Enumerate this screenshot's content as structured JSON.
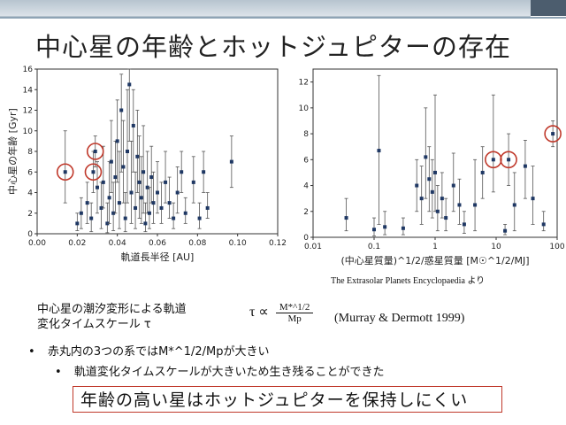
{
  "slide": {
    "title": "中心星の年齢とホットジュピターの存在",
    "source": "The Extrasolar Planets Encyclopaedia より",
    "text_line1": "中心星の潮汐変形による軌道",
    "text_line2": "変化タイムスケール τ",
    "formula_lhs": "τ ∝",
    "formula_num": "M*^1/2",
    "formula_den": "Mp",
    "reference": "(Murray & Dermott 1999)",
    "bullet1": "赤丸内の3つの系ではM*^1/2/Mpが大きい",
    "bullet2": "軌道変化タイムスケールが大きいため生き残ることができた",
    "conclusion": "年齢の高い星はホットジュピターを保持しにくい",
    "bullet_mark": "•"
  },
  "chart_data": [
    {
      "type": "scatter",
      "xlabel": "軌道長半径 [AU]",
      "ylabel": "中心星の年齢 [Gyr]",
      "xlim": [
        0,
        0.12
      ],
      "ylim": [
        0,
        16
      ],
      "xticks": [
        "0.00",
        "0.02",
        "0.04",
        "0.06",
        "0.08",
        "0.10",
        "0.12"
      ],
      "yticks": [
        "0",
        "2",
        "4",
        "6",
        "8",
        "10",
        "12",
        "14",
        "16"
      ],
      "points": [
        {
          "x": 0.014,
          "y": 6.0,
          "lo": 3.0,
          "hi": 10.0
        },
        {
          "x": 0.028,
          "y": 6.0,
          "lo": 4.0,
          "hi": 8.0
        },
        {
          "x": 0.029,
          "y": 8.0,
          "lo": 6.5,
          "hi": 9.5
        },
        {
          "x": 0.02,
          "y": 1.0,
          "lo": 0.3,
          "hi": 2.0
        },
        {
          "x": 0.022,
          "y": 2.0,
          "lo": 0.5,
          "hi": 3.5
        },
        {
          "x": 0.025,
          "y": 3.0,
          "lo": 1.0,
          "hi": 5.0
        },
        {
          "x": 0.027,
          "y": 1.5,
          "lo": 0.2,
          "hi": 3.0
        },
        {
          "x": 0.03,
          "y": 4.5,
          "lo": 2.0,
          "hi": 7.0
        },
        {
          "x": 0.032,
          "y": 2.5,
          "lo": 0.5,
          "hi": 5.0
        },
        {
          "x": 0.033,
          "y": 5.0,
          "lo": 2.5,
          "hi": 8.5
        },
        {
          "x": 0.035,
          "y": 1.0,
          "lo": 0.1,
          "hi": 3.0
        },
        {
          "x": 0.036,
          "y": 3.5,
          "lo": 1.0,
          "hi": 7.0
        },
        {
          "x": 0.037,
          "y": 7.0,
          "lo": 4.0,
          "hi": 11.0
        },
        {
          "x": 0.038,
          "y": 2.0,
          "lo": 0.3,
          "hi": 5.0
        },
        {
          "x": 0.039,
          "y": 5.5,
          "lo": 2.0,
          "hi": 9.0
        },
        {
          "x": 0.04,
          "y": 9.0,
          "lo": 5.0,
          "hi": 13.0
        },
        {
          "x": 0.041,
          "y": 3.0,
          "lo": 0.5,
          "hi": 8.0
        },
        {
          "x": 0.042,
          "y": 12.0,
          "lo": 6.0,
          "hi": 15.5
        },
        {
          "x": 0.043,
          "y": 6.5,
          "lo": 3.0,
          "hi": 11.0
        },
        {
          "x": 0.044,
          "y": 1.5,
          "lo": 0.2,
          "hi": 4.0
        },
        {
          "x": 0.045,
          "y": 8.0,
          "lo": 3.0,
          "hi": 14.0
        },
        {
          "x": 0.046,
          "y": 14.5,
          "lo": 9.0,
          "hi": 16.0
        },
        {
          "x": 0.047,
          "y": 4.0,
          "lo": 1.0,
          "hi": 9.0
        },
        {
          "x": 0.048,
          "y": 10.5,
          "lo": 6.0,
          "hi": 14.0
        },
        {
          "x": 0.049,
          "y": 2.5,
          "lo": 0.5,
          "hi": 6.0
        },
        {
          "x": 0.05,
          "y": 7.5,
          "lo": 4.0,
          "hi": 12.0
        },
        {
          "x": 0.051,
          "y": 5.0,
          "lo": 1.5,
          "hi": 9.5
        },
        {
          "x": 0.052,
          "y": 3.5,
          "lo": 1.0,
          "hi": 7.5
        },
        {
          "x": 0.053,
          "y": 6.0,
          "lo": 2.0,
          "hi": 10.5
        },
        {
          "x": 0.054,
          "y": 1.0,
          "lo": 0.2,
          "hi": 3.0
        },
        {
          "x": 0.055,
          "y": 4.5,
          "lo": 2.0,
          "hi": 8.0
        },
        {
          "x": 0.056,
          "y": 2.0,
          "lo": 0.5,
          "hi": 4.5
        },
        {
          "x": 0.057,
          "y": 5.5,
          "lo": 3.0,
          "hi": 8.5
        },
        {
          "x": 0.058,
          "y": 3.0,
          "lo": 1.0,
          "hi": 6.0
        },
        {
          "x": 0.06,
          "y": 4.0,
          "lo": 2.0,
          "hi": 7.0
        },
        {
          "x": 0.062,
          "y": 2.5,
          "lo": 1.0,
          "hi": 5.0
        },
        {
          "x": 0.064,
          "y": 5.0,
          "lo": 3.0,
          "hi": 8.0
        },
        {
          "x": 0.066,
          "y": 3.0,
          "lo": 1.5,
          "hi": 5.5
        },
        {
          "x": 0.068,
          "y": 1.5,
          "lo": 0.5,
          "hi": 3.0
        },
        {
          "x": 0.07,
          "y": 4.0,
          "lo": 2.0,
          "hi": 6.5
        },
        {
          "x": 0.072,
          "y": 6.0,
          "lo": 4.0,
          "hi": 8.0
        },
        {
          "x": 0.074,
          "y": 2.0,
          "lo": 1.0,
          "hi": 3.5
        },
        {
          "x": 0.078,
          "y": 5.0,
          "lo": 3.0,
          "hi": 7.5
        },
        {
          "x": 0.081,
          "y": 1.5,
          "lo": 0.5,
          "hi": 3.0
        },
        {
          "x": 0.083,
          "y": 6.0,
          "lo": 4.0,
          "hi": 8.0
        },
        {
          "x": 0.085,
          "y": 2.5,
          "lo": 1.5,
          "hi": 4.0
        },
        {
          "x": 0.097,
          "y": 7.0,
          "lo": 4.5,
          "hi": 9.5
        }
      ],
      "highlights": [
        {
          "x": 0.014,
          "y": 6.0
        },
        {
          "x": 0.028,
          "y": 6.0
        },
        {
          "x": 0.029,
          "y": 8.0
        }
      ]
    },
    {
      "type": "scatter",
      "log_x": true,
      "xlabel": "(中心星質量)^1/2/惑星質量 [M☉^1/2/MJ]",
      "xlim": [
        0.01,
        100
      ],
      "ylim": [
        0,
        13
      ],
      "xticks": [
        "0.01",
        "0.1",
        "1",
        "10",
        "100"
      ],
      "yticks": [
        "0",
        "2",
        "4",
        "6",
        "8",
        "10",
        "12"
      ],
      "points": [
        {
          "x": 0.035,
          "y": 1.5,
          "lo": 0.5,
          "hi": 3.0
        },
        {
          "x": 0.1,
          "y": 0.6,
          "lo": 0.1,
          "hi": 1.5
        },
        {
          "x": 0.12,
          "y": 6.7,
          "lo": 1.0,
          "hi": 12.5
        },
        {
          "x": 0.15,
          "y": 0.8,
          "lo": 0.2,
          "hi": 2.0
        },
        {
          "x": 0.3,
          "y": 0.7,
          "lo": 0.2,
          "hi": 1.5
        },
        {
          "x": 0.5,
          "y": 4.0,
          "lo": 2.0,
          "hi": 6.0
        },
        {
          "x": 0.6,
          "y": 3.0,
          "lo": 1.0,
          "hi": 5.5
        },
        {
          "x": 0.7,
          "y": 6.2,
          "lo": 3.0,
          "hi": 10.0
        },
        {
          "x": 0.8,
          "y": 4.5,
          "lo": 2.0,
          "hi": 7.0
        },
        {
          "x": 0.9,
          "y": 3.5,
          "lo": 1.5,
          "hi": 6.0
        },
        {
          "x": 1.0,
          "y": 5.0,
          "lo": 2.0,
          "hi": 11.0
        },
        {
          "x": 1.1,
          "y": 2.0,
          "lo": 0.5,
          "hi": 4.0
        },
        {
          "x": 1.3,
          "y": 3.0,
          "lo": 1.5,
          "hi": 5.0
        },
        {
          "x": 1.5,
          "y": 1.5,
          "lo": 0.5,
          "hi": 3.0
        },
        {
          "x": 2.0,
          "y": 4.0,
          "lo": 2.0,
          "hi": 6.5
        },
        {
          "x": 2.5,
          "y": 2.5,
          "lo": 1.0,
          "hi": 4.5
        },
        {
          "x": 3.0,
          "y": 1.0,
          "lo": 0.3,
          "hi": 2.0
        },
        {
          "x": 4.5,
          "y": 2.5,
          "lo": 0.5,
          "hi": 6.0
        },
        {
          "x": 6.0,
          "y": 5.0,
          "lo": 3.0,
          "hi": 7.0
        },
        {
          "x": 9.0,
          "y": 6.0,
          "lo": 3.5,
          "hi": 11.0
        },
        {
          "x": 14.0,
          "y": 0.5,
          "lo": 0.2,
          "hi": 1.0
        },
        {
          "x": 16.0,
          "y": 6.0,
          "lo": 4.0,
          "hi": 8.0
        },
        {
          "x": 20.0,
          "y": 2.5,
          "lo": 0.5,
          "hi": 5.0
        },
        {
          "x": 30.0,
          "y": 5.5,
          "lo": 3.0,
          "hi": 7.5
        },
        {
          "x": 40.0,
          "y": 3.0,
          "lo": 1.0,
          "hi": 5.5
        },
        {
          "x": 60.0,
          "y": 1.0,
          "lo": 0.5,
          "hi": 2.0
        },
        {
          "x": 85.0,
          "y": 8.0,
          "lo": 7.0,
          "hi": 9.0
        }
      ],
      "highlights": [
        {
          "x": 9.0,
          "y": 6.0
        },
        {
          "x": 16.0,
          "y": 6.0
        },
        {
          "x": 85.0,
          "y": 8.0
        }
      ]
    }
  ],
  "colors": {
    "point": "#1f3864",
    "error_bar": "#555555",
    "highlight": "#c0392b",
    "axis": "#333333"
  }
}
